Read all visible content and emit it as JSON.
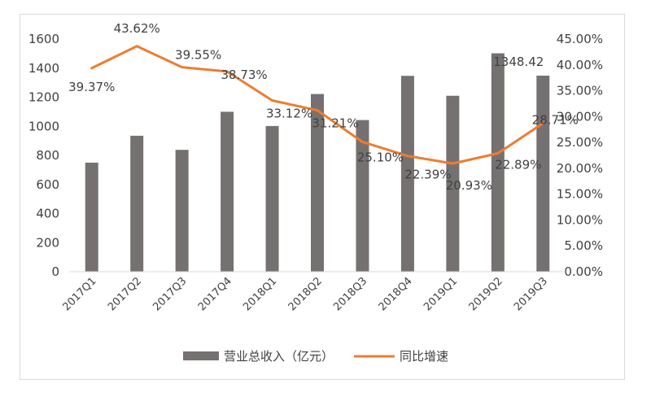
{
  "chart_data": {
    "type": "bar+line",
    "categories": [
      "2017Q1",
      "2017Q2",
      "2017Q3",
      "2017Q4",
      "2018Q1",
      "2018Q2",
      "2018Q3",
      "2018Q4",
      "2019Q1",
      "2019Q2",
      "2019Q3"
    ],
    "series": [
      {
        "name": "营业总收入（亿元）",
        "type": "bar",
        "axis": "left",
        "color": "#767171",
        "values": [
          750,
          935,
          838,
          1100,
          1002,
          1222,
          1043,
          1347,
          1210,
          1502,
          1348.42
        ],
        "data_labels": [
          "",
          "",
          "",
          "",
          "",
          "",
          "",
          "",
          "",
          "",
          "1348.42"
        ]
      },
      {
        "name": "同比增速",
        "type": "line",
        "axis": "right",
        "color": "#ED7D31",
        "values": [
          39.37,
          43.62,
          39.55,
          38.73,
          33.12,
          31.21,
          25.1,
          22.39,
          20.93,
          22.89,
          28.71
        ],
        "data_labels": [
          "39.37%",
          "43.62%",
          "39.55%",
          "38.73%",
          "33.12%",
          "31.21%",
          "25.10%",
          "22.39%",
          "20.93%",
          "22.89%",
          "28.71%"
        ]
      }
    ],
    "y_left": {
      "min": 0,
      "max": 1600,
      "ticks": [
        "0",
        "200",
        "400",
        "600",
        "800",
        "1000",
        "1200",
        "1400",
        "1600"
      ]
    },
    "y_right": {
      "min": 0,
      "max": 45,
      "ticks": [
        "0.00%",
        "5.00%",
        "10.00%",
        "15.00%",
        "20.00%",
        "25.00%",
        "30.00%",
        "35.00%",
        "40.00%",
        "45.00%"
      ]
    },
    "grid": false,
    "legend_position": "bottom"
  }
}
